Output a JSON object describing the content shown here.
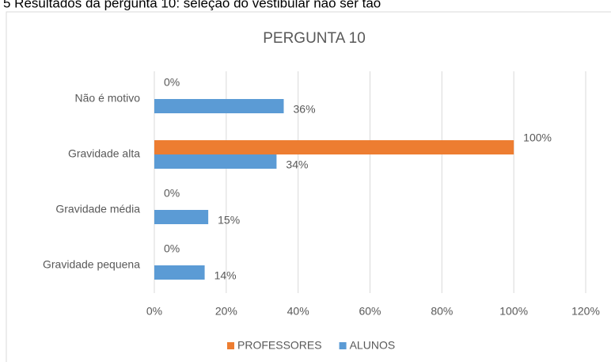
{
  "caption": "5   Resultados da pergunta 10: seleção do vestibular não ser tão",
  "chart_data": {
    "type": "hbar",
    "title": "PERGUNTA 10",
    "categories": [
      "Não é motivo",
      "Gravidade alta",
      "Gravidade média",
      "Gravidade pequena"
    ],
    "series": [
      {
        "name": "PROFESSORES",
        "color": "#ed7d31",
        "values": [
          0,
          100,
          0,
          0
        ],
        "value_labels": [
          "0%",
          "100%",
          "0%",
          "0%"
        ]
      },
      {
        "name": "ALUNOS",
        "color": "#5b9bd5",
        "values": [
          36,
          34,
          15,
          14
        ],
        "value_labels": [
          "36%",
          "34%",
          "15%",
          "14%"
        ]
      }
    ],
    "xlim": [
      0,
      120
    ],
    "xticks": [
      {
        "value": 0,
        "label": "0%"
      },
      {
        "value": 20,
        "label": "20%"
      },
      {
        "value": 40,
        "label": "40%"
      },
      {
        "value": 60,
        "label": "60%"
      },
      {
        "value": 80,
        "label": "80%"
      },
      {
        "value": 100,
        "label": "100%"
      },
      {
        "value": 120,
        "label": "120%"
      }
    ],
    "grid": true,
    "legend": "bottom"
  }
}
